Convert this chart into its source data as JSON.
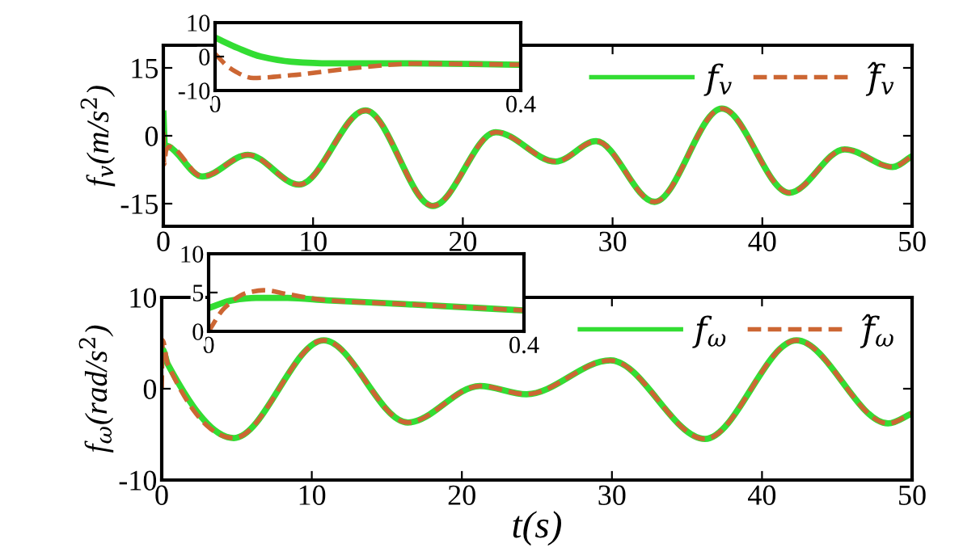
{
  "chart_data": [
    {
      "type": "line",
      "ylabel": "f$_{v}$(m/s$^{2}$)",
      "xlim": [
        0,
        50
      ],
      "ylim": [
        -20,
        20
      ],
      "xticks": [
        0,
        10,
        20,
        30,
        40,
        50
      ],
      "yticks": [
        -15,
        0,
        15
      ],
      "legend": "top right",
      "grid": false,
      "series": [
        {
          "name": "f$_{v}$",
          "color": "#33dd33",
          "line_style": "solid",
          "x": [
            0,
            0.1,
            0.4,
            2.6,
            5.65,
            9.07,
            13.5,
            18.0,
            22.2,
            26.2,
            28.9,
            32.8,
            37.3,
            41.8,
            45.5,
            48.7,
            50
          ],
          "values": [
            5.6,
            -2,
            -2.4,
            -9.0,
            -4.2,
            -10.8,
            5.6,
            -15.5,
            0.8,
            -5.7,
            -1.2,
            -14.6,
            6.0,
            -12.6,
            -3.0,
            -6.9,
            -4.5
          ]
        },
        {
          "name": "f̂$_{v}$",
          "color": "#cc6633",
          "line_style": "dashed",
          "x": [
            0,
            0.05,
            0.19,
            0.4,
            2.6,
            5.65,
            9.07,
            13.5,
            18.0,
            22.2,
            26.2,
            28.9,
            32.8,
            37.3,
            41.8,
            45.5,
            48.7,
            50
          ],
          "values": [
            0.8,
            -6.3,
            -3.2,
            -2.4,
            -9.0,
            -4.2,
            -10.8,
            5.6,
            -15.5,
            0.8,
            -5.7,
            -1.2,
            -14.6,
            6.0,
            -12.6,
            -3.0,
            -6.9,
            -4.5
          ]
        }
      ]
    },
    {
      "type": "line",
      "xlim": [
        0,
        0.4
      ],
      "ylim": [
        -10,
        10
      ],
      "xticks": [
        0,
        0.4
      ],
      "yticks": [
        -10,
        0,
        10
      ],
      "grid": false,
      "series": [
        {
          "color": "#33dd33",
          "line_style": "solid",
          "x": [
            0,
            0.03,
            0.06,
            0.1,
            0.15,
            0.25,
            0.4
          ],
          "values": [
            5.6,
            2.5,
            0,
            -1.5,
            -2,
            -2,
            -2.4
          ]
        },
        {
          "color": "#cc6633",
          "line_style": "dashed",
          "x": [
            0,
            0.02,
            0.05,
            0.1,
            0.19,
            0.26,
            0.4
          ],
          "values": [
            0.8,
            -3.5,
            -6.3,
            -5.5,
            -3.2,
            -2.1,
            -2.4
          ]
        }
      ]
    },
    {
      "type": "line",
      "xlabel": "t(s)",
      "ylabel": "f$_{ω}$(rad/s$^{2}$)",
      "xlim": [
        0,
        50
      ],
      "ylim": [
        -10,
        10
      ],
      "xticks": [
        0,
        10,
        20,
        30,
        40,
        50
      ],
      "yticks": [
        -10,
        0,
        10
      ],
      "legend": "top right",
      "grid": false,
      "series": [
        {
          "name": "f$_{ω}$",
          "color": "#33dd33",
          "line_style": "solid",
          "x": [
            0,
            0.06,
            0.4,
            4.8,
            10.8,
            16.4,
            21.2,
            24.3,
            29.9,
            36.2,
            42.3,
            48.4,
            50
          ],
          "values": [
            3,
            4.3,
            2.7,
            -5.4,
            5.3,
            -3.7,
            0.3,
            -0.6,
            3.1,
            -5.5,
            5.3,
            -3.8,
            -2.7
          ]
        },
        {
          "name": "f̂$_{ω}$",
          "color": "#cc6633",
          "line_style": "dashed",
          "x": [
            0,
            0.07,
            0.4,
            4.8,
            10.8,
            16.4,
            21.2,
            24.3,
            29.9,
            36.2,
            42.3,
            48.4,
            50
          ],
          "values": [
            0,
            5.3,
            2.7,
            -5.4,
            5.3,
            -3.7,
            0.3,
            -0.6,
            3.1,
            -5.5,
            5.3,
            -3.8,
            -2.7
          ]
        }
      ]
    },
    {
      "type": "line",
      "xlim": [
        0,
        0.4
      ],
      "ylim": [
        0,
        10
      ],
      "xticks": [
        0,
        0.4
      ],
      "yticks": [
        0,
        5,
        10
      ],
      "grid": false,
      "series": [
        {
          "color": "#33dd33",
          "line_style": "solid",
          "x": [
            0,
            0.03,
            0.06,
            0.1,
            0.15,
            0.25,
            0.4
          ],
          "values": [
            3,
            4,
            4.3,
            4.3,
            4,
            3.5,
            2.7
          ]
        },
        {
          "color": "#cc6633",
          "line_style": "dashed",
          "x": [
            0,
            0.02,
            0.05,
            0.07,
            0.1,
            0.15,
            0.25,
            0.4
          ],
          "values": [
            0,
            3,
            5,
            5.3,
            4.8,
            4,
            3.5,
            2.7
          ]
        }
      ]
    }
  ]
}
